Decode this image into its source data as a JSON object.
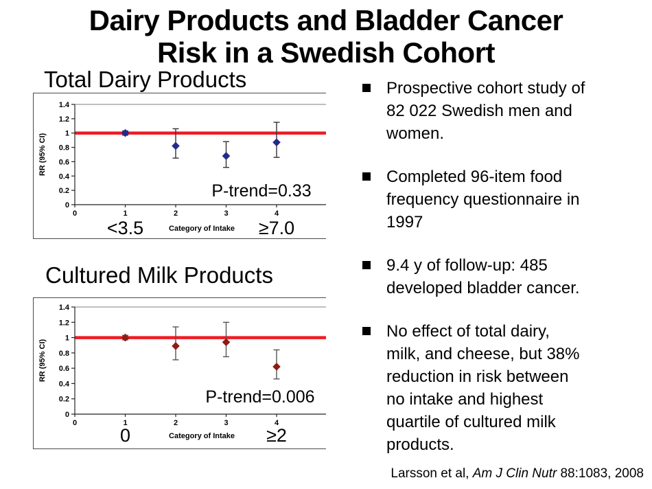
{
  "slide_title": {
    "line1": "Dairy Products and Bladder Cancer",
    "line2": "Risk in a Swedish Cohort"
  },
  "bullets": [
    {
      "text": "Prospective cohort study of\n82 022 Swedish men and\nwomen."
    },
    {
      "text": "Completed 96-item food\nfrequency questionnaire in\n1997"
    },
    {
      "text": "9.4 y of follow-up: 485\ndeveloped bladder cancer."
    },
    {
      "text": "No effect of total dairy,\nmilk, and cheese, but 38%\nreduction in risk between\nno intake and highest\nquartile of cultured milk\nproducts."
    }
  ],
  "citation": {
    "prefix": "Larsson et al, ",
    "journal": "Am J Clin Nutr",
    "suffix": " 88:1083, 2008"
  },
  "colors": {
    "reference_line": "#ee1c24",
    "axis": "#222222",
    "gridline": "#999999",
    "total_dairy_marker": "#222a8d",
    "cultured_milk_marker": "#8e1c14"
  },
  "chart_data": [
    {
      "type": "scatter",
      "title": "Total Dairy Products",
      "ylabel": "RR (95% CI)",
      "xlabel": "Category of Intake",
      "ylim": [
        0,
        1.4
      ],
      "y_ticks": [
        0,
        0.2,
        0.4,
        0.6,
        0.8,
        1,
        1.2,
        1.4
      ],
      "x_ticks": [
        0,
        1,
        2,
        3,
        4
      ],
      "grid": "top-line-only",
      "reference_line_y": 1.0,
      "annotation": "P-trend=0.33",
      "marker_color": "#222a8d",
      "error_bar_color": "#333333",
      "category_labels": [
        {
          "x": 1,
          "label": "<3.5"
        },
        {
          "x": 4,
          "label": "≥7.0"
        }
      ],
      "points": [
        {
          "x": 1,
          "rr": 1.0,
          "ci_low": 0.97,
          "ci_high": 1.03
        },
        {
          "x": 2,
          "rr": 0.82,
          "ci_low": 0.65,
          "ci_high": 1.06
        },
        {
          "x": 3,
          "rr": 0.68,
          "ci_low": 0.52,
          "ci_high": 0.88
        },
        {
          "x": 4,
          "rr": 0.87,
          "ci_low": 0.66,
          "ci_high": 1.15
        }
      ]
    },
    {
      "type": "scatter",
      "title": "Cultured Milk Products",
      "ylabel": "RR (95% CI)",
      "xlabel": "Category of Intake",
      "ylim": [
        0,
        1.4
      ],
      "y_ticks": [
        0,
        0.2,
        0.4,
        0.6,
        0.8,
        1,
        1.2,
        1.4
      ],
      "x_ticks": [
        0,
        1,
        2,
        3,
        4
      ],
      "grid": "top-line-only",
      "reference_line_y": 1.0,
      "annotation": "P-trend=0.006",
      "marker_color": "#8e1c14",
      "error_bar_color": "#555555",
      "category_labels": [
        {
          "x": 1,
          "label": "0"
        },
        {
          "x": 4,
          "label": "≥2"
        }
      ],
      "points": [
        {
          "x": 1,
          "rr": 1.0,
          "ci_low": 0.97,
          "ci_high": 1.03
        },
        {
          "x": 2,
          "rr": 0.89,
          "ci_low": 0.71,
          "ci_high": 1.14
        },
        {
          "x": 3,
          "rr": 0.94,
          "ci_low": 0.75,
          "ci_high": 1.2
        },
        {
          "x": 4,
          "rr": 0.62,
          "ci_low": 0.46,
          "ci_high": 0.84
        }
      ]
    }
  ]
}
